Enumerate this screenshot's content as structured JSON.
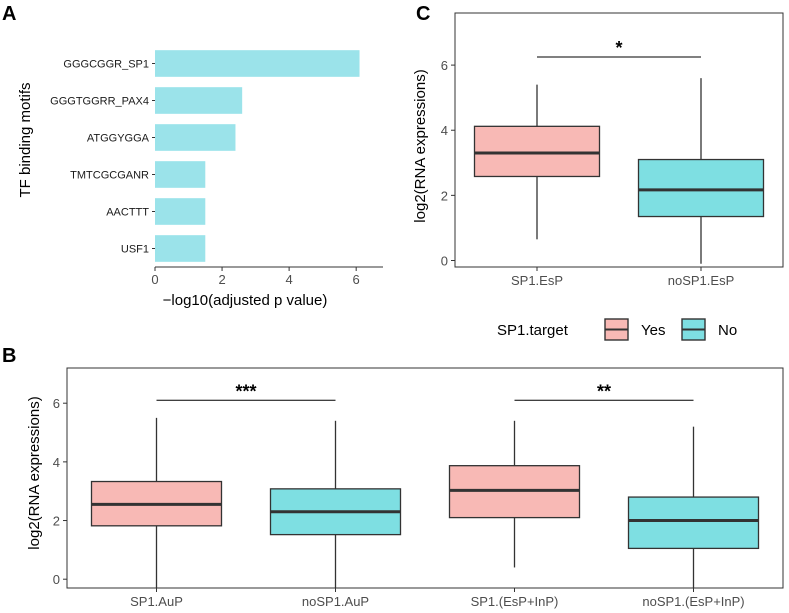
{
  "colors": {
    "bar_fill": "#9BE3EA",
    "highlight_label": "#C8102E",
    "yes_fill": "#F8B9B5",
    "no_fill": "#7EDFE2",
    "box_stroke": "#333333",
    "frame": "#333333",
    "axis_text": "#4d4d4d"
  },
  "chart_data": [
    {
      "panel": "A",
      "type": "bar",
      "orientation": "horizontal",
      "categories": [
        "GGGCGGR_SP1",
        "GGGTGGRR_PAX4",
        "ATGGYGGA",
        "TMTCGCGANR",
        "AACTTT",
        "USF1"
      ],
      "highlight_category": "GGGCGGR_SP1",
      "values": [
        6.1,
        2.6,
        2.4,
        1.5,
        1.5,
        1.5
      ],
      "xlabel": "−log10(adjusted p value)",
      "ylabel": "TF binding motifs",
      "xlim": [
        0,
        6.8
      ],
      "xticks": [
        0,
        2,
        4,
        6
      ]
    },
    {
      "panel": "C",
      "type": "box",
      "categories": [
        "SP1.EsP",
        "noSP1.EsP"
      ],
      "boxes": [
        {
          "category": "SP1.EsP",
          "group": "Yes",
          "min": 0.65,
          "q1": 2.58,
          "median": 3.3,
          "q3": 4.12,
          "max": 5.4
        },
        {
          "category": "noSP1.EsP",
          "group": "No",
          "min": -0.1,
          "q1": 1.35,
          "median": 2.17,
          "q3": 3.1,
          "max": 5.6
        }
      ],
      "comparisons": [
        {
          "from": 0,
          "to": 1,
          "y": 6.25,
          "label": "*"
        }
      ],
      "ylabel": "log2(RNA expressions)",
      "ylim": [
        -0.2,
        7.6
      ],
      "yticks": [
        0,
        2,
        4,
        6
      ]
    },
    {
      "panel": "B",
      "type": "box",
      "categories": [
        "SP1.AuP",
        "noSP1.AuP",
        "SP1.(EsP+InP)",
        "noSP1.(EsP+InP)"
      ],
      "boxes": [
        {
          "category": "SP1.AuP",
          "group": "Yes",
          "min": -0.5,
          "q1": 1.82,
          "median": 2.55,
          "q3": 3.33,
          "max": 5.5
        },
        {
          "category": "noSP1.AuP",
          "group": "No",
          "min": -0.5,
          "q1": 1.52,
          "median": 2.3,
          "q3": 3.08,
          "max": 5.4
        },
        {
          "category": "SP1.(EsP+InP)",
          "group": "Yes",
          "min": 0.4,
          "q1": 2.1,
          "median": 3.03,
          "q3": 3.87,
          "max": 5.4
        },
        {
          "category": "noSP1.(EsP+InP)",
          "group": "No",
          "min": -0.5,
          "q1": 1.05,
          "median": 2.0,
          "q3": 2.8,
          "max": 5.2
        }
      ],
      "comparisons": [
        {
          "from": 0,
          "to": 1,
          "y": 6.1,
          "label": "***"
        },
        {
          "from": 2,
          "to": 3,
          "y": 6.1,
          "label": "**"
        }
      ],
      "ylabel": "log2(RNA expressions)",
      "ylim": [
        -0.3,
        7.2
      ],
      "yticks": [
        0,
        2,
        4,
        6
      ]
    }
  ],
  "legend": {
    "title": "SP1.target",
    "items": [
      {
        "label": "Yes",
        "color": "#F8B9B5"
      },
      {
        "label": "No",
        "color": "#7EDFE2"
      }
    ]
  },
  "panel_labels": {
    "a": "A",
    "b": "B",
    "c": "C"
  }
}
